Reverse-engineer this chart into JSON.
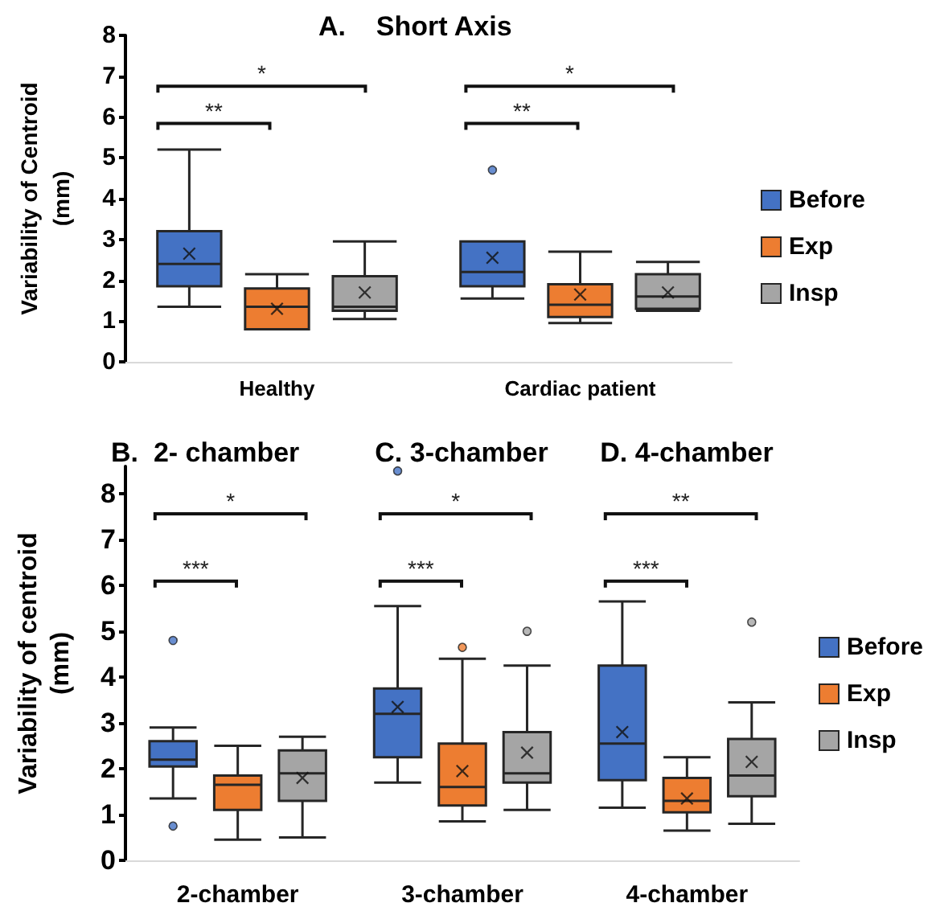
{
  "chart_data": [
    {
      "type": "box",
      "title": "A.    Short Axis",
      "ylabel": "Variability of Centroid\n(mm)",
      "categories": [
        "Healthy",
        "Cardiac patient"
      ],
      "ylim": [
        0,
        8
      ],
      "yticks": [
        0,
        1,
        2,
        3,
        4,
        5,
        6,
        7,
        8
      ],
      "legend": "right",
      "series": [
        {
          "name": "Before",
          "color": "#4472c4",
          "boxes": [
            {
              "low": 1.35,
              "q1": 1.85,
              "median": 2.4,
              "q3": 3.2,
              "high": 5.2,
              "mean": 2.65
            },
            {
              "low": 1.55,
              "q1": 1.85,
              "median": 2.2,
              "q3": 2.95,
              "high": 2.95,
              "mean": 2.55,
              "outliers": [
                4.7
              ]
            }
          ]
        },
        {
          "name": "Exp",
          "color": "#ed7d31",
          "boxes": [
            {
              "low": 0.8,
              "q1": 0.8,
              "median": 1.35,
              "q3": 1.8,
              "high": 2.15,
              "mean": 1.3
            },
            {
              "low": 0.95,
              "q1": 1.1,
              "median": 1.4,
              "q3": 1.9,
              "high": 2.7,
              "mean": 1.65
            }
          ]
        },
        {
          "name": "Insp",
          "color": "#a5a5a5",
          "boxes": [
            {
              "low": 1.05,
              "q1": 1.25,
              "median": 1.35,
              "q3": 2.1,
              "high": 2.95,
              "mean": 1.7
            },
            {
              "low": 1.25,
              "q1": 1.3,
              "median": 1.6,
              "q3": 2.15,
              "high": 2.45,
              "mean": 1.7
            }
          ]
        }
      ],
      "annotations": [
        "**",
        "*",
        "**",
        "*"
      ]
    },
    {
      "type": "box",
      "title": "B.  2- chamber",
      "ylabel": "Variability of centroid\n(mm)",
      "categories": [
        "2-chamber",
        "3-chamber",
        "4-chamber"
      ],
      "ylim": [
        0,
        8.6
      ],
      "yticks": [
        0,
        1,
        2,
        3,
        4,
        5,
        6,
        7,
        8
      ],
      "legend": "right",
      "series": [
        {
          "name": "Before",
          "color": "#4472c4",
          "boxes": [
            {
              "low": 1.35,
              "q1": 2.05,
              "median": 2.2,
              "q3": 2.6,
              "high": 2.9,
              "outliers": [
                4.8,
                0.75
              ]
            },
            {
              "low": 1.7,
              "q1": 2.25,
              "median": 3.2,
              "q3": 3.75,
              "high": 5.55,
              "mean": 3.35,
              "outliers": [
                8.5
              ]
            },
            {
              "low": 1.15,
              "q1": 1.75,
              "median": 2.55,
              "q3": 4.25,
              "high": 5.65,
              "mean": 2.8
            }
          ]
        },
        {
          "name": "Exp",
          "color": "#ed7d31",
          "boxes": [
            {
              "low": 0.45,
              "q1": 1.1,
              "median": 1.65,
              "q3": 1.85,
              "high": 2.5
            },
            {
              "low": 0.85,
              "q1": 1.2,
              "median": 1.6,
              "q3": 2.55,
              "high": 4.4,
              "mean": 1.95,
              "outliers": [
                4.65
              ]
            },
            {
              "low": 0.65,
              "q1": 1.05,
              "median": 1.3,
              "q3": 1.8,
              "high": 2.25,
              "mean": 1.35
            }
          ]
        },
        {
          "name": "Insp",
          "color": "#a5a5a5",
          "boxes": [
            {
              "low": 0.5,
              "q1": 1.3,
              "median": 1.9,
              "q3": 2.4,
              "high": 2.7,
              "mean": 1.8
            },
            {
              "low": 1.1,
              "q1": 1.7,
              "median": 1.9,
              "q3": 2.8,
              "high": 4.25,
              "mean": 2.35,
              "outliers": [
                5
              ]
            },
            {
              "low": 0.8,
              "q1": 1.4,
              "median": 1.85,
              "q3": 2.65,
              "high": 3.45,
              "mean": 2.15,
              "outliers": [
                5.2
              ]
            }
          ]
        }
      ],
      "annotations": [
        "C.  3-chamber",
        "D.  4-chamber",
        "***",
        "*",
        "***",
        "*",
        "***",
        "**"
      ]
    }
  ]
}
